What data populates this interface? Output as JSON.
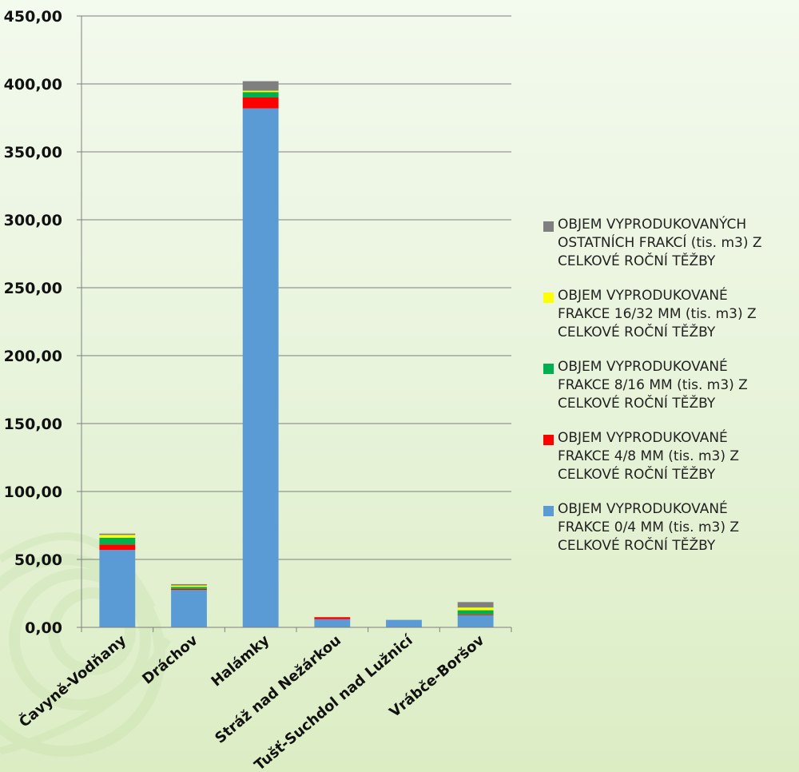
{
  "chart_data": {
    "type": "bar",
    "stacked": true,
    "categories": [
      "Čavyně-Vodňany",
      "Dráchov",
      "Halámky",
      "Stráž nad Nežárkou",
      "Tušť-Suchdol nad Lužnicí",
      "Vrábče-Boršov"
    ],
    "y_tick_labels": [
      "0,00",
      "50,00",
      "100,00",
      "150,00",
      "200,00",
      "250,00",
      "300,00",
      "350,00",
      "400,00",
      "450,00"
    ],
    "ylim": [
      0,
      450
    ],
    "grid": true,
    "legend_position": "right",
    "series": [
      {
        "name": "OBJEM VYPRODUKOVANÉ FRAKCE 0/4 MM (tis. m3) Z CELKOVÉ ROČNÍ TĚŽBY",
        "color": "#5b9bd5",
        "values": [
          57,
          27.5,
          382,
          6,
          5.5,
          9
        ]
      },
      {
        "name": "OBJEM VYPRODUKOVANÉ FRAKCE 4/8 MM (tis. m3) Z CELKOVÉ ROČNÍ TĚŽBY",
        "color": "#ff0000",
        "values": [
          4,
          0.8,
          8,
          1.5,
          0,
          0.6
        ]
      },
      {
        "name": "OBJEM VYPRODUKOVANÉ FRAKCE 8/16 MM (tis. m3) Z CELKOVÉ ROČNÍ TĚŽBY",
        "color": "#00b050",
        "values": [
          5,
          1.5,
          4,
          0,
          0,
          3
        ]
      },
      {
        "name": "OBJEM VYPRODUKOVANÉ FRAKCE 16/32 MM (tis. m3) Z CELKOVÉ ROČNÍ TĚŽBY",
        "color": "#ffff00",
        "values": [
          2,
          1,
          1,
          0,
          0,
          2
        ]
      },
      {
        "name": "OBJEM VYPRODUKOVANÝCH OSTATNÍCH FRAKCÍ (tis. m3) Z CELKOVÉ ROČNÍ TĚŽBY",
        "color": "#7f7f7f",
        "values": [
          1,
          1,
          7,
          0,
          0,
          4
        ]
      }
    ]
  },
  "legend": {
    "items": [
      {
        "label": "OBJEM VYPRODUKOVANÝCH\nOSTATNÍCH FRAKCÍ (tis. m3) Z\nCELKOVÉ ROČNÍ TĚŽBY",
        "color": "#7f7f7f"
      },
      {
        "label": "OBJEM VYPRODUKOVANÉ\nFRAKCE 16/32 MM (tis. m3) Z\nCELKOVÉ ROČNÍ TĚŽBY",
        "color": "#ffff00"
      },
      {
        "label": "OBJEM VYPRODUKOVANÉ\nFRAKCE 8/16 MM (tis. m3) Z\nCELKOVÉ ROČNÍ TĚŽBY",
        "color": "#00b050"
      },
      {
        "label": "OBJEM VYPRODUKOVANÉ\nFRAKCE 4/8 MM (tis. m3) Z\nCELKOVÉ ROČNÍ TĚŽBY",
        "color": "#ff0000"
      },
      {
        "label": "OBJEM VYPRODUKOVANÉ\nFRAKCE 0/4 MM (tis. m3) Z\nCELKOVÉ ROČNÍ TĚŽBY",
        "color": "#5b9bd5"
      }
    ]
  }
}
